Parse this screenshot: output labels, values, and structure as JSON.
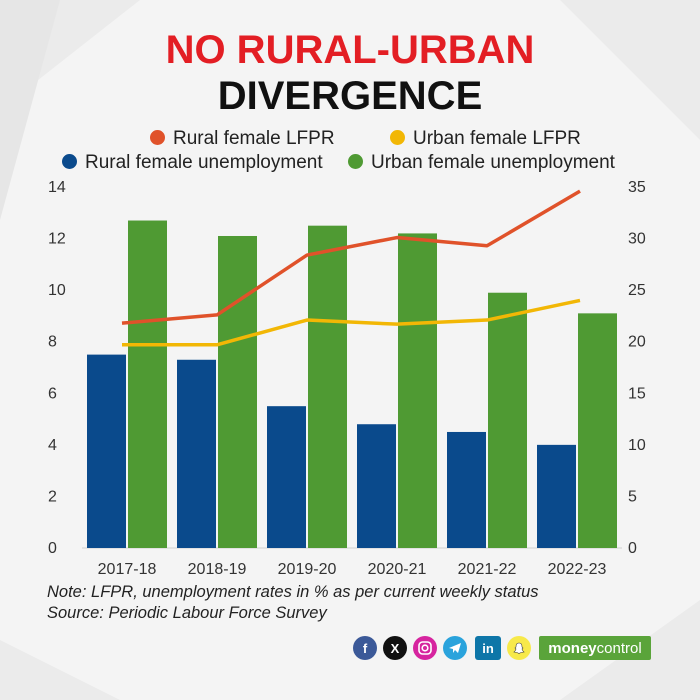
{
  "header": {
    "title_line1": "NO RURAL-URBAN",
    "title_line2": "DIVERGENCE"
  },
  "legend": [
    {
      "label": "Rural female LFPR",
      "color": "#e0522a"
    },
    {
      "label": "Urban female LFPR",
      "color": "#f2b705"
    },
    {
      "label": "Rural female unemployment",
      "color": "#0a4a8c"
    },
    {
      "label": "Urban female unemployment",
      "color": "#4f9a33"
    }
  ],
  "chart_data": {
    "type": "bar",
    "categories": [
      "2017-18",
      "2018-19",
      "2019-20",
      "2020-21",
      "2021-22",
      "2022-23"
    ],
    "series": [
      {
        "name": "Rural female unemployment",
        "kind": "bar",
        "axis": "left",
        "color": "#0a4a8c",
        "values": [
          7.5,
          7.3,
          5.5,
          4.8,
          4.5,
          4.0
        ]
      },
      {
        "name": "Urban female unemployment",
        "kind": "bar",
        "axis": "left",
        "color": "#4f9a33",
        "values": [
          12.7,
          12.1,
          12.5,
          12.2,
          9.9,
          9.1
        ]
      },
      {
        "name": "Rural female LFPR",
        "kind": "line",
        "axis": "right",
        "color": "#e0522a",
        "values": [
          21.8,
          22.6,
          28.4,
          30.1,
          29.3,
          34.6
        ]
      },
      {
        "name": "Urban female LFPR",
        "kind": "line",
        "axis": "right",
        "color": "#f2b705",
        "values": [
          19.7,
          19.7,
          22.1,
          21.7,
          22.1,
          24.0
        ]
      }
    ],
    "y_left": {
      "min": 0,
      "max": 14,
      "ticks": [
        "0",
        "2",
        "4",
        "6",
        "8",
        "10",
        "12",
        "14"
      ]
    },
    "y_right": {
      "min": 0,
      "max": 35,
      "ticks": [
        "0",
        "5",
        "10",
        "15",
        "20",
        "25",
        "30",
        "35"
      ]
    },
    "grid": false,
    "legend_position": "top"
  },
  "notes": {
    "line1": "Note: LFPR, unemployment rates in % as per current weekly status",
    "line2": "Source: Periodic Labour Force Survey"
  },
  "footer": {
    "social_icons": [
      "facebook-icon",
      "x-icon",
      "instagram-icon",
      "telegram-icon",
      "linkedin-icon",
      "snapchat-icon"
    ],
    "brand_part1": "money",
    "brand_part2": "control"
  }
}
